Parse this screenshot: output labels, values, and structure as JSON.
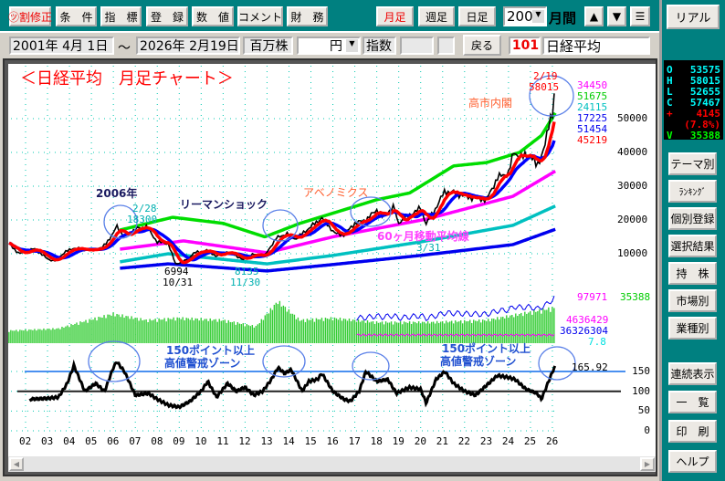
{
  "toolbar": {
    "buttons": [
      "㋡割修正",
      "条　件",
      "指　標",
      "登　録",
      "数　値",
      "コメント",
      "財　務"
    ],
    "period_buttons": [
      "月足",
      "週足",
      "日足"
    ],
    "period_count": "200",
    "period_unit": "月間",
    "up": "▲",
    "down": "▼",
    "menu": "☰"
  },
  "range": {
    "from": "2001年 4月 1日",
    "sep": "～",
    "to": "2026年 2月19日",
    "volume_unit": "百万株",
    "currency": "円",
    "index_label": "指数",
    "back": "戻る",
    "code": "101",
    "name": "日経平均"
  },
  "right_panel": {
    "real": "リアル",
    "ohlc": [
      {
        "k": "O",
        "v": "53575",
        "c": "#00ffff"
      },
      {
        "k": "H",
        "v": "58015",
        "c": "#00ffff"
      },
      {
        "k": "L",
        "v": "52655",
        "c": "#00ffff"
      },
      {
        "k": "C",
        "v": "57467",
        "c": "#00ffff"
      },
      {
        "k": "+",
        "v": "4145",
        "c": "#ff0000"
      },
      {
        "k": "",
        "v": "(7.8%)",
        "c": "#ff0000"
      },
      {
        "k": "V",
        "v": "35388",
        "c": "#00ff00"
      }
    ],
    "buttons": [
      "テーマ別",
      "ﾗﾝｷﾝｸﾞ",
      "個別登録",
      "選択結果",
      "持　株",
      "市場別",
      "業種別",
      "連続表示",
      "一　覧",
      "印　刷",
      "ヘルプ"
    ]
  },
  "chart_data": {
    "type": "line",
    "title": "＜日経平均　月足チャート＞",
    "x_tick_labels": [
      "02",
      "03",
      "04",
      "05",
      "06",
      "07",
      "08",
      "09",
      "10",
      "11",
      "12",
      "13",
      "14",
      "15",
      "16",
      "17",
      "18",
      "19",
      "20",
      "21",
      "22",
      "23",
      "24",
      "25",
      "26"
    ],
    "price_axis": {
      "ticks": [
        10000,
        20000,
        30000,
        40000,
        50000
      ],
      "range": [
        0,
        58000
      ]
    },
    "oscillator_axis": {
      "ticks": [
        0,
        50,
        100,
        150
      ],
      "range": [
        0,
        180
      ]
    },
    "grid": true,
    "price": [
      [
        2001.25,
        13000
      ],
      [
        2001.7,
        10000
      ],
      [
        2002.0,
        10500
      ],
      [
        2002.4,
        11500
      ],
      [
        2003.0,
        8500
      ],
      [
        2003.3,
        7800
      ],
      [
        2003.8,
        10500
      ],
      [
        2004.2,
        11700
      ],
      [
        2004.9,
        11000
      ],
      [
        2005.5,
        11800
      ],
      [
        2006.0,
        16000
      ],
      [
        2006.15,
        18300
      ],
      [
        2006.5,
        15000
      ],
      [
        2007.0,
        17300
      ],
      [
        2007.5,
        18000
      ],
      [
        2008.0,
        13500
      ],
      [
        2008.5,
        13000
      ],
      [
        2008.83,
        6994
      ],
      [
        2009.2,
        7600
      ],
      [
        2009.7,
        10300
      ],
      [
        2010.3,
        11000
      ],
      [
        2010.7,
        9200
      ],
      [
        2011.1,
        10600
      ],
      [
        2011.5,
        9800
      ],
      [
        2011.92,
        8135
      ],
      [
        2012.3,
        9800
      ],
      [
        2012.9,
        9400
      ],
      [
        2013.4,
        14500
      ],
      [
        2013.9,
        16000
      ],
      [
        2014.3,
        14300
      ],
      [
        2014.9,
        17500
      ],
      [
        2015.5,
        20600
      ],
      [
        2016.1,
        16000
      ],
      [
        2016.5,
        15600
      ],
      [
        2017.0,
        19000
      ],
      [
        2017.5,
        20000
      ],
      [
        2018.0,
        23000
      ],
      [
        2018.25,
        21000
      ],
      [
        2018.8,
        24000
      ],
      [
        2018.95,
        19000
      ],
      [
        2019.5,
        21500
      ],
      [
        2020.0,
        23500
      ],
      [
        2020.25,
        18900
      ],
      [
        2020.6,
        22500
      ],
      [
        2021.1,
        28500
      ],
      [
        2021.6,
        28000
      ],
      [
        2022.0,
        27000
      ],
      [
        2022.5,
        26500
      ],
      [
        2023.0,
        26000
      ],
      [
        2023.5,
        32500
      ],
      [
        2024.0,
        34000
      ],
      [
        2024.25,
        40000
      ],
      [
        2024.6,
        38500
      ],
      [
        2025.0,
        39500
      ],
      [
        2025.3,
        35600
      ],
      [
        2025.7,
        43000
      ],
      [
        2025.9,
        50000
      ],
      [
        2026.0,
        52000
      ],
      [
        2026.13,
        57467
      ]
    ],
    "ma_long": [
      {
        "color": "#00dd00",
        "last": "51675",
        "points": [
          [
            2006.3,
            17000
          ],
          [
            2008.7,
            20800
          ],
          [
            2011.0,
            19000
          ],
          [
            2012.9,
            15000
          ],
          [
            2014.5,
            19000
          ],
          [
            2016.0,
            22000
          ],
          [
            2018.0,
            26000
          ],
          [
            2019.5,
            28000
          ],
          [
            2021.5,
            36000
          ],
          [
            2023.0,
            37000
          ],
          [
            2024.5,
            40000
          ],
          [
            2025.5,
            45000
          ],
          [
            2026.13,
            51675
          ]
        ]
      },
      {
        "color": "#ff00ff",
        "last": "34450",
        "label": "60ヶ月移動平均線",
        "points": [
          [
            2006.3,
            11350
          ],
          [
            2009.2,
            13800
          ],
          [
            2013.0,
            10300
          ],
          [
            2016.0,
            15000
          ],
          [
            2020.3,
            20300
          ],
          [
            2024.2,
            27000
          ],
          [
            2026.13,
            34450
          ]
        ]
      },
      {
        "color": "#00c0c0",
        "last": "24115",
        "points": [
          [
            2006.3,
            7600
          ],
          [
            2008.5,
            10000
          ],
          [
            2013.0,
            7000
          ],
          [
            2016.0,
            9500
          ],
          [
            2020.0,
            13500
          ],
          [
            2024.2,
            18400
          ],
          [
            2026.13,
            24115
          ]
        ]
      },
      {
        "color": "#0000ee",
        "last": "17225",
        "points": [
          [
            2006.3,
            5700
          ],
          [
            2008.5,
            7000
          ],
          [
            2013.0,
            4900
          ],
          [
            2016.0,
            6800
          ],
          [
            2020.0,
            9500
          ],
          [
            2024.2,
            12700
          ],
          [
            2026.13,
            17225
          ]
        ]
      }
    ],
    "ma_short": [
      {
        "color": "#0000ff",
        "last": "51454",
        "months": 12
      },
      {
        "color": "#ff0000",
        "last": "45219",
        "months": 6
      }
    ],
    "oscillator": {
      "value": "165.92",
      "lines": [
        150,
        100
      ],
      "points": [
        [
          2002.2,
          80
        ],
        [
          2003.0,
          82
        ],
        [
          2003.5,
          85
        ],
        [
          2003.9,
          120
        ],
        [
          2004.2,
          165
        ],
        [
          2004.7,
          100
        ],
        [
          2005.2,
          120
        ],
        [
          2005.6,
          100
        ],
        [
          2006.0,
          160
        ],
        [
          2006.15,
          175
        ],
        [
          2006.5,
          150
        ],
        [
          2007.0,
          90
        ],
        [
          2007.6,
          95
        ],
        [
          2008.0,
          80
        ],
        [
          2008.5,
          65
        ],
        [
          2009.0,
          60
        ],
        [
          2009.5,
          75
        ],
        [
          2010.0,
          100
        ],
        [
          2010.3,
          125
        ],
        [
          2010.7,
          85
        ],
        [
          2011.2,
          120
        ],
        [
          2011.6,
          100
        ],
        [
          2012.0,
          110
        ],
        [
          2012.4,
          90
        ],
        [
          2012.8,
          100
        ],
        [
          2013.2,
          130
        ],
        [
          2013.5,
          160
        ],
        [
          2013.8,
          145
        ],
        [
          2014.1,
          155
        ],
        [
          2014.6,
          100
        ],
        [
          2014.9,
          125
        ],
        [
          2015.3,
          130
        ],
        [
          2015.5,
          145
        ],
        [
          2016.0,
          100
        ],
        [
          2016.5,
          80
        ],
        [
          2016.8,
          75
        ],
        [
          2017.2,
          100
        ],
        [
          2017.5,
          150
        ],
        [
          2018.0,
          125
        ],
        [
          2018.5,
          130
        ],
        [
          2018.9,
          95
        ],
        [
          2019.5,
          110
        ],
        [
          2020.0,
          105
        ],
        [
          2020.25,
          70
        ],
        [
          2020.7,
          130
        ],
        [
          2021.1,
          150
        ],
        [
          2021.5,
          120
        ],
        [
          2022.0,
          100
        ],
        [
          2022.5,
          90
        ],
        [
          2023.0,
          115
        ],
        [
          2023.5,
          140
        ],
        [
          2024.0,
          135
        ],
        [
          2024.3,
          130
        ],
        [
          2024.8,
          105
        ],
        [
          2025.3,
          95
        ],
        [
          2025.5,
          80
        ],
        [
          2025.9,
          135
        ],
        [
          2026.13,
          165.92
        ]
      ]
    },
    "volume_relative": [
      [
        2001.3,
        0.3
      ],
      [
        2003.5,
        0.35
      ],
      [
        2004.5,
        0.5
      ],
      [
        2006.0,
        0.7
      ],
      [
        2007.5,
        0.55
      ],
      [
        2009.0,
        0.6
      ],
      [
        2011.0,
        0.55
      ],
      [
        2012.5,
        0.4
      ],
      [
        2013.5,
        1.0
      ],
      [
        2014.5,
        0.55
      ],
      [
        2016.0,
        0.6
      ],
      [
        2018.0,
        0.5
      ],
      [
        2020.5,
        0.5
      ],
      [
        2023.0,
        0.55
      ],
      [
        2026.13,
        0.85
      ]
    ],
    "side_values": {
      "v1": "97971",
      "v2": "35388",
      "v3": "4636429",
      "v4": "36326304",
      "v5": "7.8"
    }
  },
  "annotations": {
    "y2006": "2006年",
    "peak_date": "2/28",
    "peak_value": "18300",
    "lehman": "リーマンショック",
    "low_value": "6994",
    "low_date": "10/31",
    "low2_value": "8135",
    "low2_date": "11/30",
    "abenomics": "アベノミクス",
    "ma60": "60ヶ月移動平均線",
    "covid_date": "3/31",
    "takaichi": "高市内閣",
    "high_date": "2/19",
    "high_value": "58015",
    "zone1": "150ポイント以上",
    "zone2": "高値警戒ゾーン"
  }
}
